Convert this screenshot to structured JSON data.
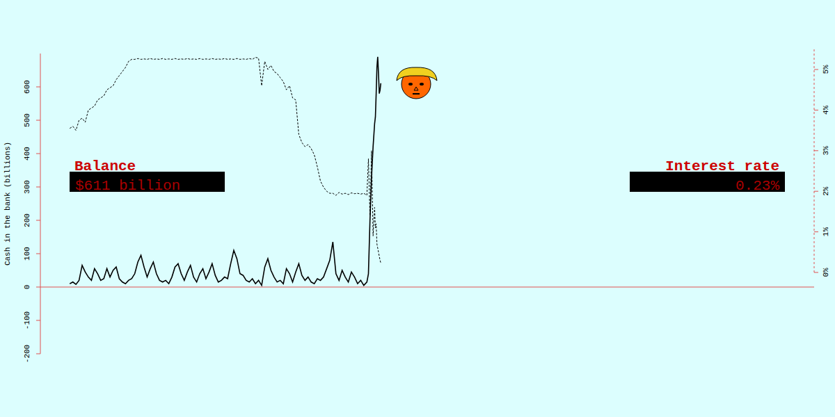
{
  "chart_data": {
    "type": "line",
    "ylabel": "Cash in the bank (billions)",
    "tick_labels": "y",
    "xlim": [
      0,
      1000
    ],
    "ylim": [
      -200,
      700
    ],
    "yticks": [
      -200,
      -100,
      0,
      100,
      200,
      300,
      400,
      500,
      600
    ],
    "y2lim": [
      0,
      5.5
    ],
    "y2ticks": [
      {
        "value": 0,
        "label": "0%"
      },
      {
        "value": 1,
        "label": "1%"
      },
      {
        "value": 2,
        "label": "2%"
      },
      {
        "value": 3,
        "label": "3%"
      },
      {
        "value": 4,
        "label": "4%"
      },
      {
        "value": 5,
        "label": "5%"
      }
    ],
    "x": [
      38,
      42,
      46,
      50,
      54,
      58,
      62,
      66,
      70,
      74,
      78,
      82,
      86,
      90,
      94,
      98,
      102,
      106,
      110,
      114,
      118,
      122,
      126,
      130,
      134,
      138,
      142,
      146,
      150,
      154,
      158,
      162,
      166,
      170,
      174,
      178,
      182,
      186,
      190,
      194,
      198,
      202,
      206,
      210,
      214,
      218,
      222,
      226,
      230,
      234,
      238,
      242,
      246,
      250,
      254,
      258,
      262,
      266,
      270,
      274,
      278,
      282,
      286,
      290,
      294,
      298,
      302,
      306,
      310,
      314,
      318,
      322,
      326,
      330,
      334,
      338,
      342,
      346,
      350,
      354,
      358,
      362,
      366,
      370,
      374,
      378,
      382,
      386,
      390,
      394,
      398,
      402,
      406,
      410,
      414,
      418,
      422,
      424,
      426,
      428,
      430,
      432,
      433,
      434,
      435,
      436,
      437,
      438,
      439,
      440
    ],
    "series": [
      {
        "name": "Balance",
        "annotation": "$611 billion",
        "color": "#000000",
        "line_style": "solid",
        "values": [
          10,
          15,
          8,
          20,
          65,
          45,
          30,
          20,
          55,
          40,
          20,
          25,
          55,
          30,
          50,
          60,
          25,
          15,
          10,
          20,
          25,
          40,
          75,
          95,
          60,
          30,
          55,
          75,
          40,
          20,
          15,
          20,
          10,
          30,
          60,
          70,
          40,
          20,
          45,
          65,
          30,
          15,
          40,
          55,
          25,
          45,
          70,
          35,
          15,
          20,
          30,
          25,
          70,
          110,
          85,
          40,
          35,
          20,
          15,
          25,
          10,
          20,
          5,
          60,
          85,
          50,
          30,
          15,
          20,
          10,
          55,
          40,
          15,
          45,
          70,
          35,
          20,
          30,
          15,
          10,
          25,
          20,
          30,
          55,
          80,
          135,
          40,
          20,
          50,
          30,
          15,
          45,
          30,
          10,
          20,
          5,
          15,
          40,
          200,
          330,
          420,
          490,
          510,
          580,
          660,
          690,
          640,
          580,
          590,
          611
        ]
      },
      {
        "name": "Interest rate",
        "annotation": "0.23%",
        "color": "#000000",
        "line_style": "dashed",
        "axis": "y2",
        "values": [
          3.55,
          3.6,
          3.5,
          3.75,
          3.8,
          3.7,
          4.0,
          4.05,
          4.1,
          4.25,
          4.3,
          4.35,
          4.5,
          4.55,
          4.6,
          4.75,
          4.85,
          4.95,
          5.05,
          5.2,
          5.25,
          5.25,
          5.27,
          5.25,
          5.26,
          5.25,
          5.27,
          5.25,
          5.26,
          5.25,
          5.27,
          5.25,
          5.26,
          5.25,
          5.27,
          5.25,
          5.26,
          5.25,
          5.27,
          5.25,
          5.26,
          5.25,
          5.27,
          5.25,
          5.26,
          5.25,
          5.27,
          5.25,
          5.26,
          5.25,
          5.27,
          5.25,
          5.26,
          5.25,
          5.27,
          5.25,
          5.26,
          5.25,
          5.27,
          5.25,
          5.3,
          5.28,
          4.6,
          5.2,
          5.0,
          5.1,
          4.95,
          4.9,
          4.8,
          4.7,
          4.5,
          4.6,
          4.3,
          4.25,
          3.4,
          3.2,
          3.1,
          3.15,
          3.05,
          2.9,
          2.6,
          2.25,
          2.1,
          2.0,
          1.95,
          1.95,
          1.9,
          1.97,
          1.93,
          1.95,
          1.92,
          1.96,
          1.94,
          1.95,
          1.93,
          1.95,
          1.9,
          2.8,
          1.4,
          3.0,
          0.9,
          1.6,
          1.1,
          1.2,
          0.7,
          0.6,
          0.5,
          0.4,
          0.3,
          0.23
        ]
      }
    ]
  }
}
